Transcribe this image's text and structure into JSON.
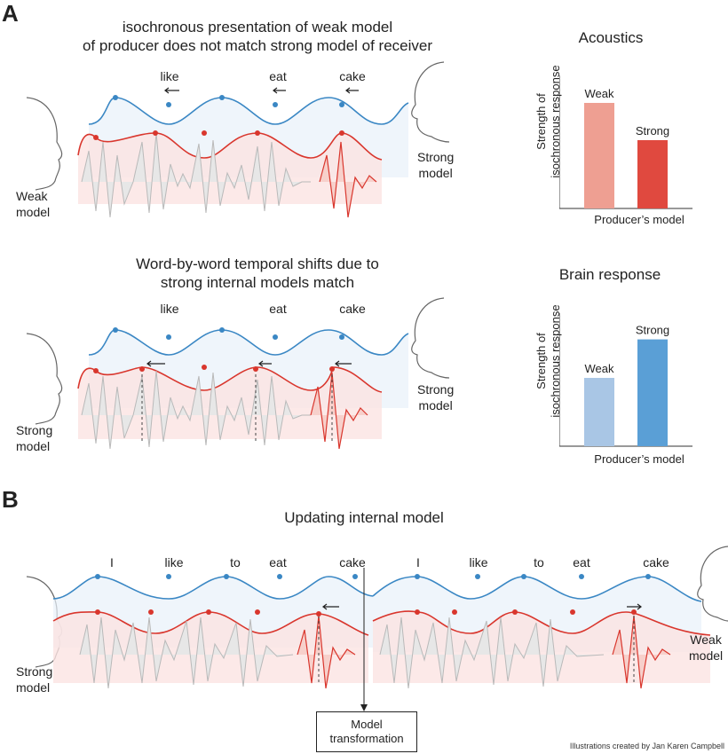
{
  "panel_a": {
    "letter": "A",
    "top": {
      "title_line1": "isochronous presentation of weak model",
      "title_line2": "of producer does not match strong model of receiver",
      "words": [
        "like",
        "eat",
        "cake"
      ],
      "left_label_line1": "Weak",
      "left_label_line2": "model",
      "right_label_line1": "Strong",
      "right_label_line2": "model"
    },
    "bottom": {
      "title_line1": "Word-by-word temporal shifts due to",
      "title_line2": "strong internal models match",
      "words": [
        "like",
        "eat",
        "cake"
      ],
      "left_label_line1": "Strong",
      "left_label_line2": "model",
      "right_label_line1": "Strong",
      "right_label_line2": "model"
    }
  },
  "panel_b": {
    "letter": "B",
    "title": "Updating internal model",
    "words_left": [
      "I",
      "like",
      "to",
      "eat",
      "cake"
    ],
    "words_right": [
      "I",
      "like",
      "to",
      "eat",
      "cake"
    ],
    "left_label_line1": "Strong",
    "left_label_line2": "model",
    "right_label_line1": "Weak",
    "right_label_line2": "model",
    "box_line1": "Model",
    "box_line2": "transformation"
  },
  "credit": "Illustrations created by Jan Karen Campbell",
  "colors": {
    "blue": "#3a87c4",
    "red": "#d9362d",
    "wave_gray": "#b9b9b9",
    "light_red_bar": "#ee9f92",
    "red_bar": "#e0493f",
    "light_blue_bar": "#a9c6e5",
    "blue_bar": "#5a9fd6"
  },
  "chart_data": [
    {
      "type": "bar",
      "title": "Acoustics",
      "ylabel_line1": "Strength of",
      "ylabel_line2": "isochronous response",
      "xlabel": "Producer’s model",
      "categories": [
        "Weak",
        "Strong"
      ],
      "values": [
        0.85,
        0.55
      ],
      "ylim": [
        0,
        1
      ],
      "colors": [
        "#ee9f92",
        "#e0493f"
      ]
    },
    {
      "type": "bar",
      "title": "Brain response",
      "ylabel_line1": "Strength of",
      "ylabel_line2": "isochronous  response",
      "xlabel": "Producer’s model",
      "categories": [
        "Weak",
        "Strong"
      ],
      "values": [
        0.55,
        0.86
      ],
      "ylim": [
        0,
        1
      ],
      "colors": [
        "#a9c6e5",
        "#5a9fd6"
      ]
    }
  ]
}
